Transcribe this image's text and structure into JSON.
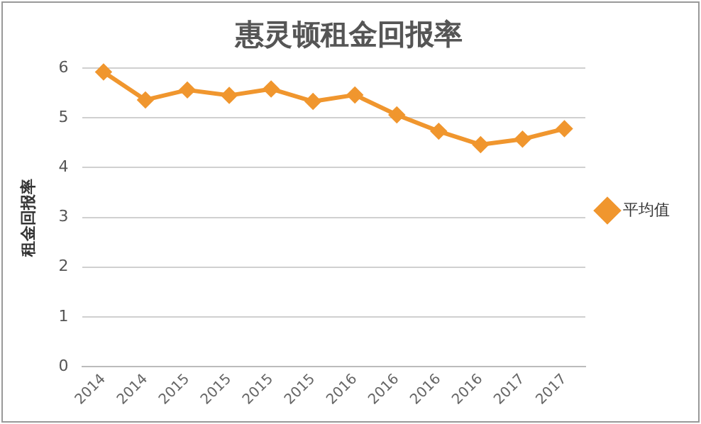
{
  "chart_data": {
    "type": "line",
    "title": "惠灵顿租金回报率",
    "ylabel": "租金回报率",
    "categories": [
      "2014",
      "2014",
      "2015",
      "2015",
      "2015",
      "2015",
      "2016",
      "2016",
      "2016",
      "2016",
      "2017",
      "2017"
    ],
    "series": [
      {
        "name": "平均值",
        "color": "#f0962e",
        "values": [
          5.92,
          5.36,
          5.56,
          5.45,
          5.58,
          5.33,
          5.46,
          5.06,
          4.73,
          4.46,
          4.57,
          4.78
        ]
      }
    ],
    "ylim": [
      0,
      6
    ],
    "yticks": [
      0,
      1,
      2,
      3,
      4,
      5,
      6
    ],
    "grid": "y",
    "legend": "right",
    "marker": "diamond"
  }
}
